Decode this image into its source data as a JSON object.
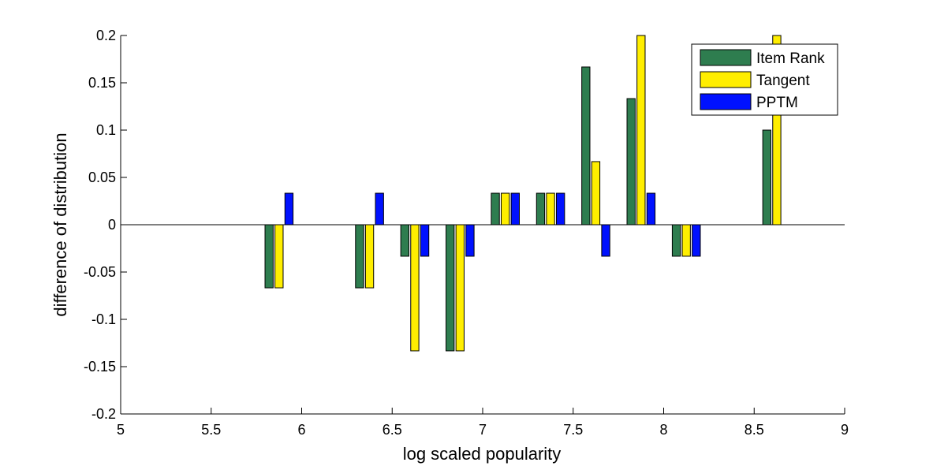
{
  "chart_data": {
    "type": "bar",
    "title": "",
    "xlabel": "log scaled popularity",
    "ylabel": "difference of distribution",
    "xlim": [
      5,
      9
    ],
    "ylim": [
      -0.2,
      0.2
    ],
    "xticks": [
      5,
      5.5,
      6,
      6.5,
      7,
      7.5,
      8,
      8.5,
      9
    ],
    "xtick_labels": [
      "5",
      "5.5",
      "6",
      "6.5",
      "7",
      "7.5",
      "8",
      "8.5",
      "9"
    ],
    "yticks": [
      -0.2,
      -0.15,
      -0.1,
      -0.05,
      0,
      0.05,
      0.1,
      0.15,
      0.2
    ],
    "ytick_labels": [
      "-0.2",
      "-0.15",
      "-0.1",
      "-0.05",
      "0",
      "0.05",
      "0.1",
      "0.15",
      "0.2"
    ],
    "x": [
      5.125,
      5.375,
      5.625,
      5.875,
      6.125,
      6.375,
      6.625,
      6.875,
      7.125,
      7.375,
      7.625,
      7.875,
      8.125,
      8.375,
      8.625,
      8.875
    ],
    "bar_offset": 0.055,
    "bar_width": 0.045,
    "legend_position": "top-right",
    "grid": false,
    "series": [
      {
        "name": "Item Rank",
        "color": "#2e7d4f",
        "values": [
          0,
          0,
          0,
          -0.0667,
          0,
          -0.0667,
          -0.0333,
          -0.1333,
          0.0333,
          0.0333,
          0.1667,
          0.1333,
          -0.0333,
          0,
          0.1,
          0
        ]
      },
      {
        "name": "Tangent",
        "color": "#ffee00",
        "values": [
          0,
          0,
          0,
          -0.0667,
          0,
          -0.0667,
          -0.1333,
          -0.1333,
          0.0333,
          0.0333,
          0.0667,
          0.2,
          -0.0333,
          0,
          0.2,
          0
        ]
      },
      {
        "name": "PPTM",
        "color": "#0011ff",
        "values": [
          0,
          0,
          0,
          0.0333,
          0,
          0.0333,
          -0.0333,
          -0.0333,
          0.0333,
          0.0333,
          -0.0333,
          0.0333,
          -0.0333,
          0,
          0,
          0
        ]
      }
    ]
  }
}
